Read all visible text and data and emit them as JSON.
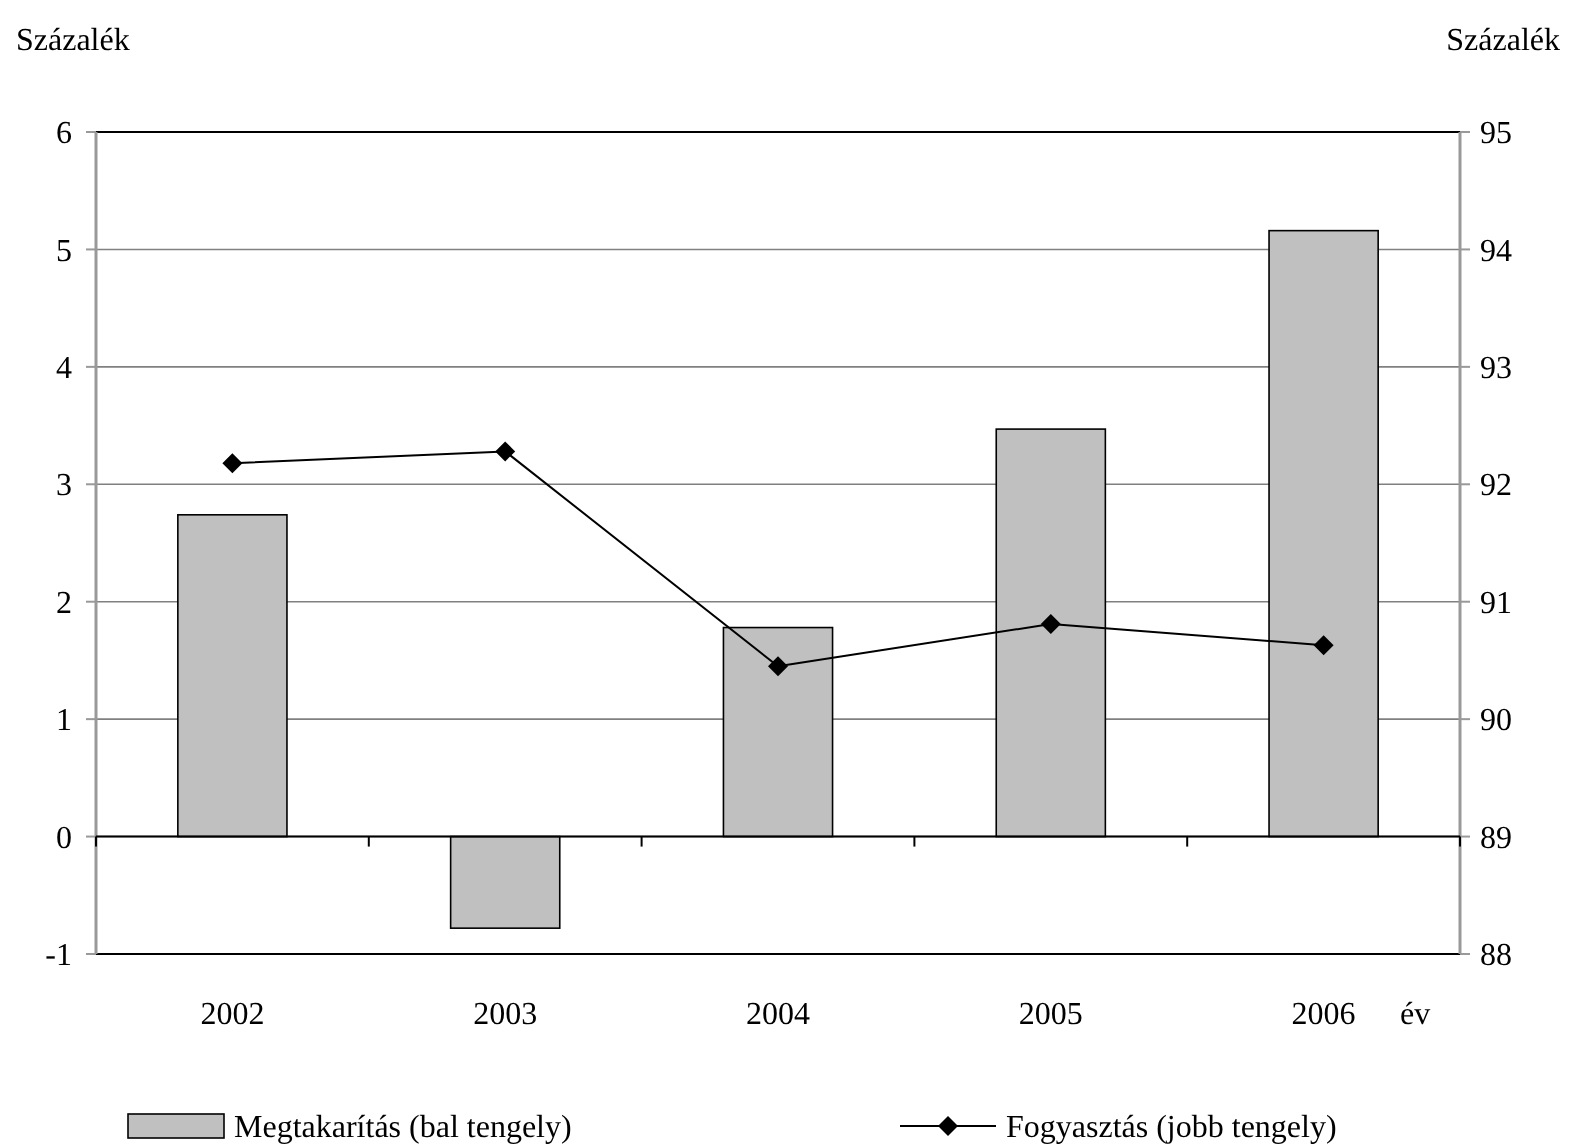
{
  "chart_data": {
    "type": "bar",
    "ylabel": "Százalék",
    "y2label": "Százalék",
    "xlabel": "év",
    "categories": [
      "2002",
      "2003",
      "2004",
      "2005",
      "2006"
    ],
    "series": [
      {
        "name": "Megtakarítás (bal tengely)",
        "color": "#c0c0c0",
        "values": [
          2.74,
          -0.78,
          1.78,
          3.47,
          5.16
        ]
      },
      {
        "name": "Fogyasztás (jobb tengely)",
        "type": "line",
        "axis": "y2",
        "color": "#000000",
        "marker": "diamond",
        "values": [
          92.18,
          92.28,
          90.45,
          90.81,
          90.63
        ]
      }
    ],
    "ylim": [
      -1,
      6
    ],
    "yticks": [
      -1,
      0,
      1,
      2,
      3,
      4,
      5,
      6
    ],
    "y2lim": [
      88,
      95
    ],
    "y2ticks": [
      88,
      89,
      90,
      91,
      92,
      93,
      94,
      95
    ],
    "grid": "y",
    "legend": "bottom"
  }
}
